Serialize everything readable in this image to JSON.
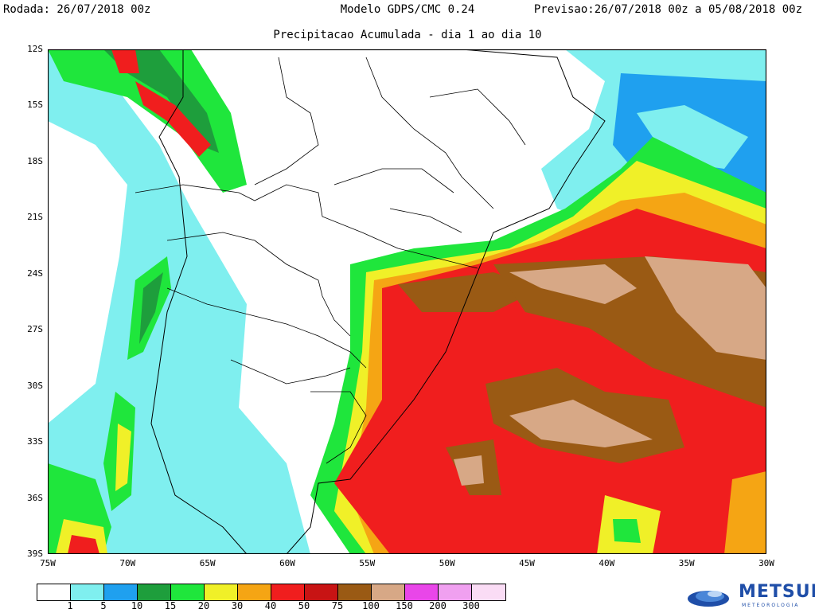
{
  "header": {
    "left": "Rodada: 26/07/2018 00z",
    "center": "Modelo GDPS/CMC 0.24",
    "right": "Previsao:26/07/2018 00z a 05/08/2018 00z",
    "subtitle": "Precipitacao Acumulada - dia 1 ao dia 10"
  },
  "axes": {
    "lat_labels": [
      "12S",
      "15S",
      "18S",
      "21S",
      "24S",
      "27S",
      "30S",
      "33S",
      "36S",
      "39S"
    ],
    "lon_labels": [
      "75W",
      "70W",
      "65W",
      "60W",
      "55W",
      "50W",
      "45W",
      "40W",
      "35W",
      "30W"
    ]
  },
  "legend": {
    "colors": [
      "#ffffff",
      "#7fefef",
      "#1fa0ef",
      "#1e9e3c",
      "#1fe63c",
      "#f0f028",
      "#f5a514",
      "#f01e1e",
      "#c81414",
      "#9a5a14",
      "#d7a886",
      "#e946e9",
      "#f0a0f0",
      "#fadcf5"
    ],
    "labels": [
      "1",
      "5",
      "10",
      "15",
      "20",
      "30",
      "40",
      "50",
      "75",
      "100",
      "150",
      "200",
      "300"
    ]
  },
  "logo": {
    "name": "METSUL",
    "sub": "METEOROLOGIA"
  }
}
